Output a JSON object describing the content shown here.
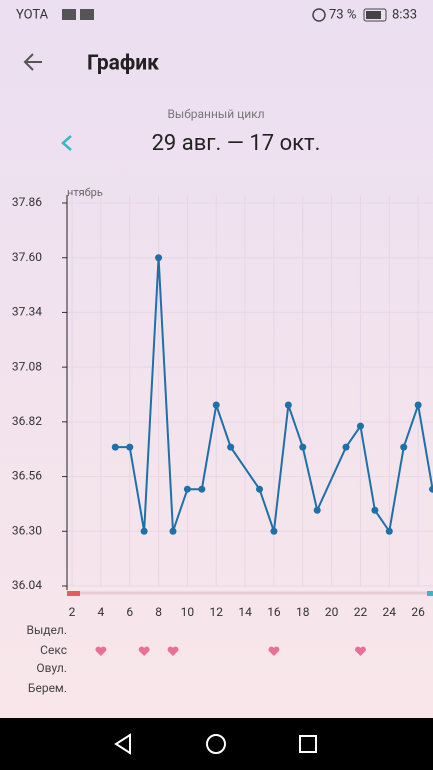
{
  "status_bar": {
    "carrier": "YOTA",
    "battery": "73 %",
    "time": "8:33"
  },
  "header": {
    "title": "График"
  },
  "cycle": {
    "caption": "Выбранный цикл",
    "range": "29 авг. — 17 окт."
  },
  "chart_data": {
    "type": "line",
    "month_label": "нтябрь",
    "x": [
      5,
      6,
      7,
      8,
      9,
      10,
      11,
      12,
      13,
      15,
      16,
      17,
      18,
      19,
      21,
      22,
      23,
      24,
      25,
      26,
      27
    ],
    "series": [
      {
        "color": "#1f6fa8",
        "values": [
          36.7,
          36.7,
          36.3,
          37.6,
          36.3,
          36.5,
          36.5,
          36.9,
          36.7,
          36.5,
          36.3,
          36.9,
          36.7,
          36.4,
          36.7,
          36.8,
          36.4,
          36.3,
          36.7,
          36.9,
          36.5
        ]
      }
    ],
    "xlim": [
      1.65,
      27.03
    ],
    "xticks": [
      2,
      4,
      6,
      8,
      10,
      12,
      14,
      16,
      18,
      20,
      22,
      24,
      26
    ],
    "ylim": [
      36.04,
      37.86
    ],
    "yticks": [
      36.04,
      {
        "value": 36.3,
        "label": "36.30"
      },
      36.56,
      36.82,
      37.08,
      37.34,
      {
        "value": 37.6,
        "label": "37.60"
      },
      37.86
    ],
    "grid": true,
    "rows": [
      "Выдел.",
      "Секс",
      "Овул.",
      "Берем."
    ],
    "sex_days": [
      4,
      7,
      9,
      16,
      22
    ],
    "heart_color": "#ea6f97"
  }
}
